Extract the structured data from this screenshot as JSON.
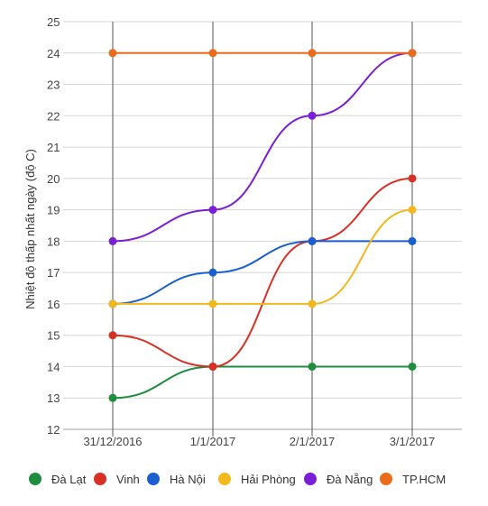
{
  "chart_data": {
    "type": "line",
    "title": "",
    "xlabel": "",
    "ylabel": "Nhiệt độ thấp nhất ngày (độ C)",
    "categories": [
      "31/12/2016",
      "1/1/2017",
      "2/1/2017",
      "3/1/2017"
    ],
    "ylim": [
      12,
      25
    ],
    "yticks": [
      12,
      13,
      14,
      15,
      16,
      17,
      18,
      19,
      20,
      21,
      22,
      23,
      24,
      25
    ],
    "grid": true,
    "legend_position": "bottom",
    "series": [
      {
        "name": "Đà Lạt",
        "color": "#1e8e3e",
        "values": [
          13,
          14,
          14,
          14
        ]
      },
      {
        "name": "Vinh",
        "color": "#d93025",
        "values": [
          15,
          14,
          18,
          20
        ]
      },
      {
        "name": "Hà Nội",
        "color": "#1a5fd0",
        "values": [
          16,
          17,
          18,
          18
        ]
      },
      {
        "name": "Hải Phòng",
        "color": "#f2b81c",
        "values": [
          16,
          16,
          16,
          19
        ]
      },
      {
        "name": "Đà Nẵng",
        "color": "#7b1fd6",
        "values": [
          18,
          19,
          22,
          24
        ]
      },
      {
        "name": "TP.HCM",
        "color": "#ea6c1a",
        "values": [
          24,
          24,
          24,
          24
        ]
      }
    ]
  }
}
